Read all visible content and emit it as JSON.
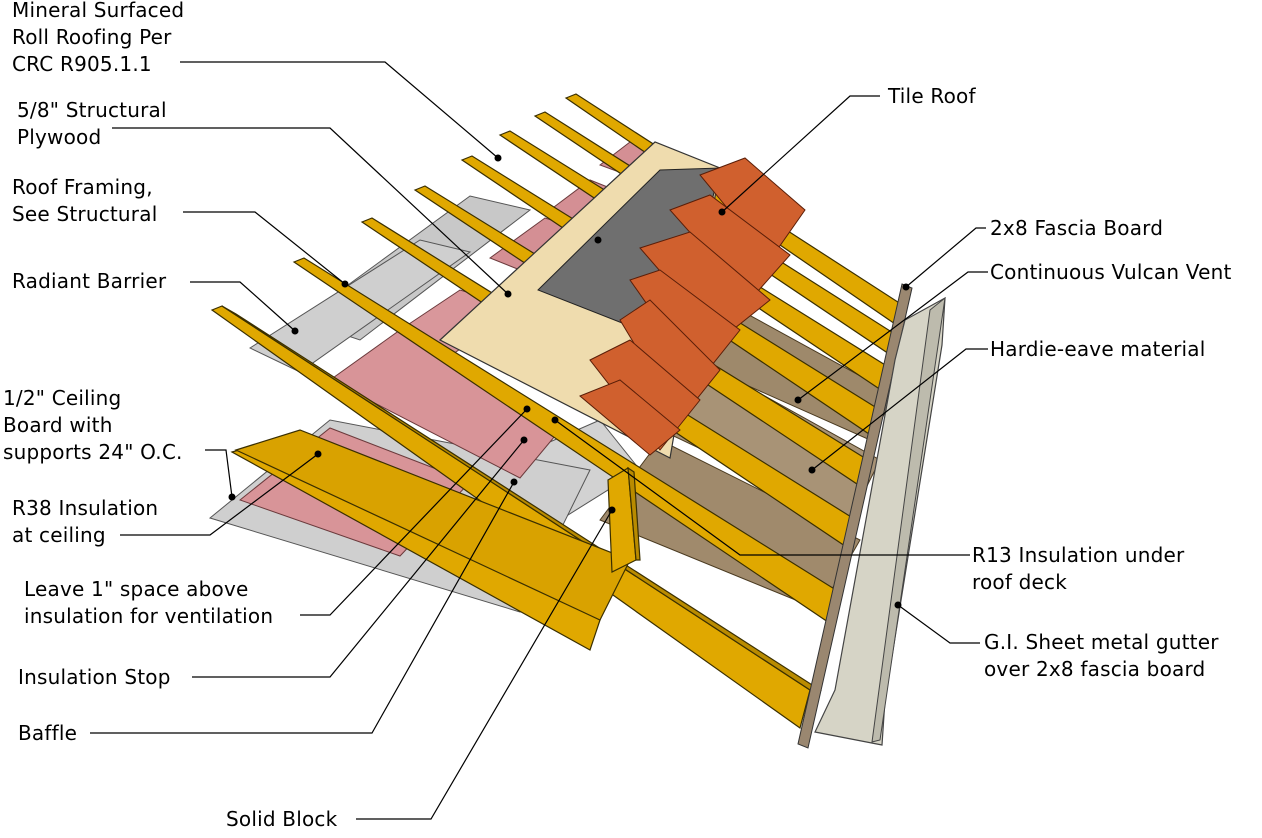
{
  "labels": {
    "roll_roofing": "Mineral Surfaced\nRoll Roofing Per\nCRC R905.1.1",
    "plywood": "5/8\" Structural\nPlywood",
    "framing": "Roof Framing,\nSee Structural",
    "radiant": "Radiant Barrier",
    "ceiling": "1/2\" Ceiling\nBoard with\nsupports 24\" O.C.",
    "r38": "R38 Insulation\nat ceiling",
    "space": "Leave 1\" space above\ninsulation for ventilation",
    "stop": "Insulation Stop",
    "baffle": "Baffle",
    "block": "Solid Block",
    "tile": "Tile Roof",
    "fascia": "2x8 Fascia Board",
    "vent": "Continuous Vulcan Vent",
    "hardie": "Hardie-eave material",
    "r13": "R13 Insulation under\nroof deck",
    "gutter": "G.I. Sheet metal gutter\nover 2x8 fascia board"
  },
  "colors": {
    "lumber": "#e0a800",
    "lumber_edge": "#4a3a00",
    "pink_insulation": "#d89498",
    "plywood": "#efdcae",
    "roll_roofing": "#6f6f6f",
    "tile": "#d0602e",
    "radiant_barrier": "#c8c8c8",
    "r13_batt": "#a08a6c",
    "fascia": "#9a8770",
    "gutter": "#d6d4c6"
  }
}
